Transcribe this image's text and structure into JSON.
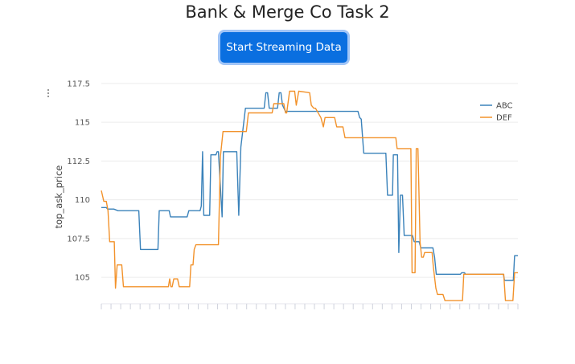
{
  "page": {
    "title": "Bank & Merge Co Task 2",
    "button_label": "Start Streaming Data"
  },
  "chart_data": {
    "type": "line",
    "ylabel": "top_ask_price",
    "ylim": [
      103.3,
      117.7
    ],
    "yticks": [
      105,
      107.5,
      110,
      112.5,
      115,
      117.5
    ],
    "ytick_labels": [
      "105",
      "107.5",
      "110",
      "112.5",
      "115",
      "117.5"
    ],
    "xlim": [
      0,
      100
    ],
    "x_tick_count": 44,
    "grid": true,
    "legend": "top-right",
    "series": [
      {
        "name": "ABC",
        "color": "#3a82ba",
        "points": [
          [
            0,
            109.5
          ],
          [
            1.2,
            109.5
          ],
          [
            1.5,
            109.4
          ],
          [
            3,
            109.4
          ],
          [
            4,
            109.3
          ],
          [
            9,
            109.3
          ],
          [
            9.4,
            106.8
          ],
          [
            13.6,
            106.8
          ],
          [
            13.9,
            109.3
          ],
          [
            16.3,
            109.3
          ],
          [
            16.6,
            108.9
          ],
          [
            20.6,
            108.9
          ],
          [
            21,
            109.3
          ],
          [
            23.7,
            109.3
          ],
          [
            24,
            109.6
          ],
          [
            24.3,
            113.1
          ],
          [
            24.6,
            109
          ],
          [
            26,
            109
          ],
          [
            26.3,
            112.9
          ],
          [
            27.5,
            112.9
          ],
          [
            27.8,
            113.1
          ],
          [
            28.1,
            113.1
          ],
          [
            29,
            108.9
          ],
          [
            29.3,
            113.1
          ],
          [
            32.5,
            113.1
          ],
          [
            33,
            109
          ],
          [
            33.5,
            113.4
          ],
          [
            34.6,
            115.9
          ],
          [
            38.6,
            115.9
          ],
          [
            39.1,
            115.9
          ],
          [
            39.5,
            116.9
          ],
          [
            39.9,
            116.9
          ],
          [
            40.3,
            115.9
          ],
          [
            42.3,
            115.9
          ],
          [
            42.7,
            116.9
          ],
          [
            43.1,
            116.9
          ],
          [
            43.5,
            116.1
          ],
          [
            44.2,
            115.7
          ],
          [
            61.6,
            115.7
          ],
          [
            62,
            115.3
          ],
          [
            62.4,
            115.2
          ],
          [
            63,
            113
          ],
          [
            67.7,
            113
          ],
          [
            68.3,
            113
          ],
          [
            68.7,
            110.3
          ],
          [
            69.9,
            110.3
          ],
          [
            70.1,
            112.9
          ],
          [
            71.1,
            112.9
          ],
          [
            71.4,
            106.6
          ],
          [
            71.8,
            110.3
          ],
          [
            72.3,
            110.3
          ],
          [
            72.7,
            107.7
          ],
          [
            74.7,
            107.7
          ],
          [
            75.1,
            107.3
          ],
          [
            76.3,
            107.3
          ],
          [
            76.7,
            106.9
          ],
          [
            79.6,
            106.9
          ],
          [
            80,
            106.3
          ],
          [
            80.4,
            105.2
          ],
          [
            86.2,
            105.2
          ],
          [
            86.5,
            105.3
          ],
          [
            87.2,
            105.3
          ],
          [
            87.4,
            105.2
          ],
          [
            96.5,
            105.2
          ],
          [
            96.8,
            104.8
          ],
          [
            98.9,
            104.8
          ],
          [
            99.2,
            106.4
          ],
          [
            100,
            106.4
          ]
        ]
      },
      {
        "name": "DEF",
        "color": "#f2922b",
        "points": [
          [
            0,
            110.6
          ],
          [
            0.6,
            109.9
          ],
          [
            1.2,
            109.9
          ],
          [
            1.6,
            109.3
          ],
          [
            2,
            107.3
          ],
          [
            3.1,
            107.3
          ],
          [
            3.4,
            104.3
          ],
          [
            3.8,
            105.8
          ],
          [
            4.9,
            105.8
          ],
          [
            5.3,
            104.4
          ],
          [
            16.1,
            104.4
          ],
          [
            16.4,
            104.9
          ],
          [
            16.7,
            104.4
          ],
          [
            17,
            104.4
          ],
          [
            17.4,
            104.9
          ],
          [
            18.3,
            104.9
          ],
          [
            18.7,
            104.4
          ],
          [
            21.2,
            104.4
          ],
          [
            21.5,
            105.8
          ],
          [
            22,
            105.8
          ],
          [
            22.3,
            106.8
          ],
          [
            22.7,
            107.1
          ],
          [
            28.1,
            107.1
          ],
          [
            28.6,
            112.8
          ],
          [
            29.2,
            114.4
          ],
          [
            34.8,
            114.4
          ],
          [
            35.3,
            115.6
          ],
          [
            41,
            115.6
          ],
          [
            41.4,
            116.2
          ],
          [
            43.8,
            116.2
          ],
          [
            44.2,
            115.6
          ],
          [
            44.5,
            115.6
          ],
          [
            45.2,
            117
          ],
          [
            46.4,
            117
          ],
          [
            46.8,
            116.1
          ],
          [
            47.4,
            117
          ],
          [
            50,
            116.9
          ],
          [
            50.4,
            116.1
          ],
          [
            51,
            115.9
          ],
          [
            51.4,
            115.9
          ],
          [
            52.7,
            115.3
          ],
          [
            53.3,
            114.7
          ],
          [
            53.7,
            115.3
          ],
          [
            56,
            115.3
          ],
          [
            56.5,
            114.7
          ],
          [
            58,
            114.7
          ],
          [
            58.5,
            114
          ],
          [
            70.7,
            114
          ],
          [
            71,
            113.3
          ],
          [
            74.3,
            113.3
          ],
          [
            74.6,
            105.3
          ],
          [
            75.3,
            105.3
          ],
          [
            75.6,
            113.3
          ],
          [
            76,
            113.3
          ],
          [
            76.2,
            111.1
          ],
          [
            76.5,
            107.3
          ],
          [
            76.9,
            106.3
          ],
          [
            77.3,
            106.3
          ],
          [
            77.6,
            106.6
          ],
          [
            79.4,
            106.6
          ],
          [
            79.7,
            105.7
          ],
          [
            80.3,
            104.3
          ],
          [
            80.7,
            103.9
          ],
          [
            82,
            103.9
          ],
          [
            82.5,
            103.5
          ],
          [
            86.7,
            103.5
          ],
          [
            87,
            105.2
          ],
          [
            96.6,
            105.2
          ],
          [
            97,
            103.5
          ],
          [
            98.8,
            103.5
          ],
          [
            99.2,
            105.3
          ],
          [
            100,
            105.3
          ]
        ]
      }
    ]
  }
}
